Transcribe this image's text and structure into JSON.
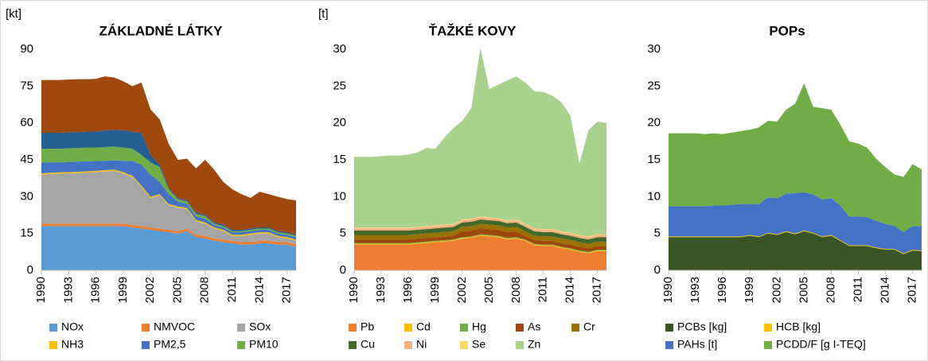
{
  "chart_data": [
    {
      "type": "area",
      "stacked": true,
      "title": "ZÁKLADNÉ LÁTKY",
      "ylabel": "[kt]",
      "x": [
        1990,
        1991,
        1992,
        1993,
        1994,
        1995,
        1996,
        1997,
        1998,
        1999,
        2000,
        2001,
        2002,
        2003,
        2004,
        2005,
        2006,
        2007,
        2008,
        2009,
        2010,
        2011,
        2012,
        2013,
        2014,
        2015,
        2016,
        2017,
        2018
      ],
      "xlim": [
        1990,
        2018
      ],
      "xticks": [
        1990,
        1993,
        1996,
        1999,
        2002,
        2005,
        2008,
        2011,
        2014,
        2017
      ],
      "ylim": [
        0,
        90
      ],
      "yticks": [
        0,
        15,
        30,
        45,
        60,
        75,
        90
      ],
      "grid": false,
      "series": [
        {
          "name": "NOx",
          "color": "#5b9bd5",
          "values": [
            18,
            18,
            18,
            18,
            18,
            18,
            18,
            18,
            18,
            18,
            17.5,
            17,
            16.5,
            16,
            15.5,
            15,
            16,
            13.5,
            13,
            12,
            11.5,
            11,
            10.5,
            10.5,
            11,
            11,
            10.5,
            10.5,
            9.5
          ]
        },
        {
          "name": "NMVOC",
          "color": "#ed7d31",
          "values": [
            1,
            1,
            1,
            1,
            1,
            1,
            1,
            1,
            1,
            1,
            1,
            1,
            1,
            1,
            1,
            1,
            1,
            1,
            1,
            1,
            1,
            1,
            1,
            1,
            1,
            1,
            1,
            1,
            1
          ]
        },
        {
          "name": "SOx",
          "color": "#a5a5a5",
          "values": [
            20,
            20.2,
            20.4,
            20.5,
            20.6,
            20.8,
            21,
            21.3,
            21.5,
            20.5,
            19.5,
            16,
            12,
            13.5,
            10,
            9.5,
            8,
            5.5,
            5,
            4,
            3.5,
            2,
            2.5,
            3,
            3,
            3,
            2,
            1.5,
            1.5
          ]
        },
        {
          "name": "NH3",
          "color": "#ffc000",
          "values": [
            0.5,
            0.5,
            0.5,
            0.5,
            0.5,
            0.5,
            0.5,
            0.5,
            0.5,
            0.5,
            0.5,
            0.5,
            0.5,
            0.5,
            0.5,
            0.5,
            0.5,
            0.5,
            0.5,
            0.5,
            0.5,
            0.5,
            0.5,
            0.5,
            0.5,
            0.5,
            0.5,
            0.5,
            0.5
          ]
        },
        {
          "name": "PM2,5",
          "color": "#4472c4",
          "values": [
            4.5,
            4.3,
            4.1,
            4.2,
            4.2,
            4.1,
            4,
            3.8,
            3.8,
            4.6,
            6,
            8.5,
            9,
            5,
            4,
            2,
            1.5,
            1.5,
            1.5,
            1,
            1,
            1,
            1,
            1,
            1,
            1,
            1,
            1,
            1
          ]
        },
        {
          "name": "PM10",
          "color": "#70ad47",
          "values": [
            5.5,
            5.5,
            5.5,
            5.5,
            5.5,
            5.6,
            5.5,
            5.6,
            5.6,
            5.4,
            5,
            4,
            5,
            6,
            2,
            1,
            1,
            1,
            1,
            0.5,
            0.5,
            0.5,
            0.5,
            0.5,
            0.5,
            0.5,
            0.5,
            0.5,
            0.5
          ]
        },
        {
          "color": "#255e91",
          "values": [
            6.5,
            6.5,
            6.5,
            6.5,
            6.5,
            6.5,
            6.5,
            6.8,
            6.8,
            7,
            7,
            9,
            3,
            1,
            0.5,
            0.5,
            0.5,
            0.5,
            0.5,
            0.5,
            0.5,
            0.5,
            0.5,
            0.5,
            0.5,
            0.5,
            0.5,
            0.5,
            0.5
          ]
        },
        {
          "color": "#9e480e",
          "values": [
            21.5,
            21.5,
            21.5,
            21.5,
            21.5,
            21.3,
            21.5,
            22,
            21.3,
            20,
            18.5,
            20.5,
            18.5,
            18.5,
            18,
            15.5,
            17,
            18,
            22.5,
            21.5,
            17.5,
            16.5,
            14.5,
            12.5,
            14.5,
            13.5,
            14,
            13.5,
            14
          ]
        }
      ]
    },
    {
      "type": "area",
      "stacked": true,
      "title": "ŤAŽKÉ KOVY",
      "ylabel": "[t]",
      "x": [
        1990,
        1991,
        1992,
        1993,
        1994,
        1995,
        1996,
        1997,
        1998,
        1999,
        2000,
        2001,
        2002,
        2003,
        2004,
        2005,
        2006,
        2007,
        2008,
        2009,
        2010,
        2011,
        2012,
        2013,
        2014,
        2015,
        2016,
        2017,
        2018
      ],
      "xlim": [
        1990,
        2018
      ],
      "xticks": [
        1990,
        1993,
        1996,
        1999,
        2002,
        2005,
        2008,
        2011,
        2014,
        2017
      ],
      "ylim": [
        0,
        30
      ],
      "yticks": [
        0,
        5,
        10,
        15,
        20,
        25,
        30
      ],
      "grid": false,
      "series": [
        {
          "name": "Pb",
          "color": "#ed7d31",
          "values": [
            3.5,
            3.5,
            3.5,
            3.5,
            3.5,
            3.5,
            3.5,
            3.6,
            3.7,
            3.8,
            3.9,
            4,
            4.3,
            4.4,
            4.7,
            4.6,
            4.5,
            4.2,
            4.3,
            4,
            3.4,
            3.3,
            3.3,
            3,
            2.8,
            2.5,
            2.3,
            2.6,
            2.6
          ]
        },
        {
          "name": "Cd",
          "color": "#ffc000",
          "values": [
            0.1,
            0.1,
            0.1,
            0.1,
            0.1,
            0.1,
            0.1,
            0.1,
            0.1,
            0.1,
            0.1,
            0.1,
            0.1,
            0.1,
            0.1,
            0.1,
            0.1,
            0.1,
            0.1,
            0.1,
            0.1,
            0.1,
            0.1,
            0.1,
            0.1,
            0.1,
            0.1,
            0.1,
            0.1
          ]
        },
        {
          "name": "Hg",
          "color": "#70ad47",
          "values": [
            0.1,
            0.1,
            0.1,
            0.1,
            0.1,
            0.1,
            0.1,
            0.1,
            0.1,
            0.1,
            0.1,
            0.1,
            0.1,
            0.1,
            0.1,
            0.1,
            0.1,
            0.1,
            0.1,
            0.1,
            0.1,
            0.1,
            0.1,
            0.1,
            0.1,
            0.1,
            0.1,
            0.1,
            0.1
          ]
        },
        {
          "name": "As",
          "color": "#9e480e",
          "values": [
            0.5,
            0.5,
            0.5,
            0.5,
            0.5,
            0.5,
            0.5,
            0.5,
            0.5,
            0.5,
            0.5,
            0.5,
            0.8,
            0.8,
            0.8,
            0.8,
            0.8,
            0.8,
            0.8,
            0.5,
            0.5,
            0.5,
            0.5,
            0.5,
            0.5,
            0.5,
            0.5,
            0.5,
            0.5
          ]
        },
        {
          "name": "Cr",
          "color": "#997300",
          "values": [
            0.6,
            0.6,
            0.6,
            0.6,
            0.6,
            0.6,
            0.6,
            0.6,
            0.6,
            0.6,
            0.6,
            0.6,
            0.6,
            0.6,
            0.6,
            0.6,
            0.6,
            0.6,
            0.6,
            0.6,
            0.6,
            0.6,
            0.6,
            0.6,
            0.6,
            0.6,
            0.6,
            0.6,
            0.6
          ]
        },
        {
          "name": "Cu",
          "color": "#43682b",
          "values": [
            0.6,
            0.6,
            0.6,
            0.6,
            0.6,
            0.6,
            0.6,
            0.6,
            0.6,
            0.6,
            0.6,
            0.6,
            0.6,
            0.6,
            0.6,
            0.6,
            0.6,
            0.6,
            0.6,
            0.6,
            0.6,
            0.6,
            0.6,
            0.6,
            0.6,
            0.6,
            0.6,
            0.6,
            0.6
          ]
        },
        {
          "name": "Ni",
          "color": "#f4b183",
          "values": [
            0.3,
            0.3,
            0.3,
            0.3,
            0.3,
            0.3,
            0.3,
            0.3,
            0.3,
            0.3,
            0.3,
            0.3,
            0.3,
            0.3,
            0.3,
            0.3,
            0.3,
            0.3,
            0.3,
            0.3,
            0.3,
            0.3,
            0.3,
            0.3,
            0.3,
            0.3,
            0.3,
            0.3,
            0.3
          ]
        },
        {
          "name": "Se",
          "color": "#ffd966",
          "values": [
            0.1,
            0.1,
            0.1,
            0.1,
            0.1,
            0.1,
            0.1,
            0.1,
            0.1,
            0.1,
            0.1,
            0.1,
            0.1,
            0.1,
            0.1,
            0.1,
            0.1,
            0.1,
            0.1,
            0.1,
            0.1,
            0.1,
            0.1,
            0.1,
            0.1,
            0.1,
            0.1,
            0.1,
            0.1
          ]
        },
        {
          "name": "Zn",
          "color": "#a9d18e",
          "values": [
            9.6,
            9.6,
            9.6,
            9.7,
            9.8,
            9.8,
            9.9,
            10.1,
            10.6,
            10.4,
            11.8,
            13,
            13.4,
            15,
            22.9,
            17.4,
            18.1,
            19,
            19.4,
            19.2,
            18.6,
            18.6,
            18.1,
            17.5,
            15.9,
            9.7,
            14.4,
            15.3,
            15.1
          ]
        }
      ]
    },
    {
      "type": "area",
      "stacked": true,
      "title": "POPs",
      "x": [
        1990,
        1991,
        1992,
        1993,
        1994,
        1995,
        1996,
        1997,
        1998,
        1999,
        2000,
        2001,
        2002,
        2003,
        2004,
        2005,
        2006,
        2007,
        2008,
        2009,
        2010,
        2011,
        2012,
        2013,
        2014,
        2015,
        2016,
        2017,
        2018
      ],
      "xlim": [
        1990,
        2018
      ],
      "xticks": [
        1990,
        1993,
        1996,
        1999,
        2002,
        2005,
        2008,
        2011,
        2014,
        2017
      ],
      "ylim": [
        0,
        30
      ],
      "yticks": [
        0,
        5,
        10,
        15,
        20,
        25,
        30
      ],
      "grid": false,
      "series": [
        {
          "name": "PCBs [kg]",
          "color": "#375623",
          "values": [
            4.5,
            4.5,
            4.5,
            4.5,
            4.5,
            4.5,
            4.5,
            4.5,
            4.5,
            4.7,
            4.5,
            5,
            4.8,
            5.2,
            4.9,
            5.3,
            5,
            4.5,
            4.7,
            4,
            3.3,
            3.3,
            3.3,
            3,
            2.8,
            2.8,
            2.2,
            2.7,
            2.6
          ]
        },
        {
          "name": "HCB [kg]",
          "color": "#ffc000",
          "values": [
            0.1,
            0.1,
            0.1,
            0.1,
            0.1,
            0.1,
            0.1,
            0.1,
            0.1,
            0.1,
            0.1,
            0.1,
            0.1,
            0.1,
            0.1,
            0.1,
            0.1,
            0.1,
            0.1,
            0.1,
            0.1,
            0.1,
            0.1,
            0.1,
            0.1,
            0.1,
            0.1,
            0.1,
            0.1
          ]
        },
        {
          "name": "PAHs [t]",
          "color": "#4472c4",
          "values": [
            4.1,
            4.1,
            4.1,
            4.1,
            4.1,
            4.2,
            4.2,
            4.3,
            4.4,
            4.2,
            4.4,
            4.8,
            4.9,
            5.1,
            5.5,
            5.2,
            5.2,
            5,
            5,
            4.7,
            3.9,
            3.9,
            3.8,
            3.6,
            3.4,
            3.1,
            2.9,
            3.2,
            3.3
          ]
        },
        {
          "name": "PCDD/F [g I-TEQ]",
          "color": "#70ad47",
          "values": [
            9.9,
            9.9,
            9.9,
            9.9,
            9.8,
            9.8,
            9.7,
            9.8,
            9.9,
            10.1,
            10.4,
            10.4,
            10.4,
            11.4,
            12.1,
            14.8,
            11.9,
            12.4,
            12,
            11,
            10.2,
            9.9,
            9.4,
            8.4,
            7.7,
            7,
            7.5,
            8.4,
            7.7
          ]
        }
      ]
    }
  ]
}
